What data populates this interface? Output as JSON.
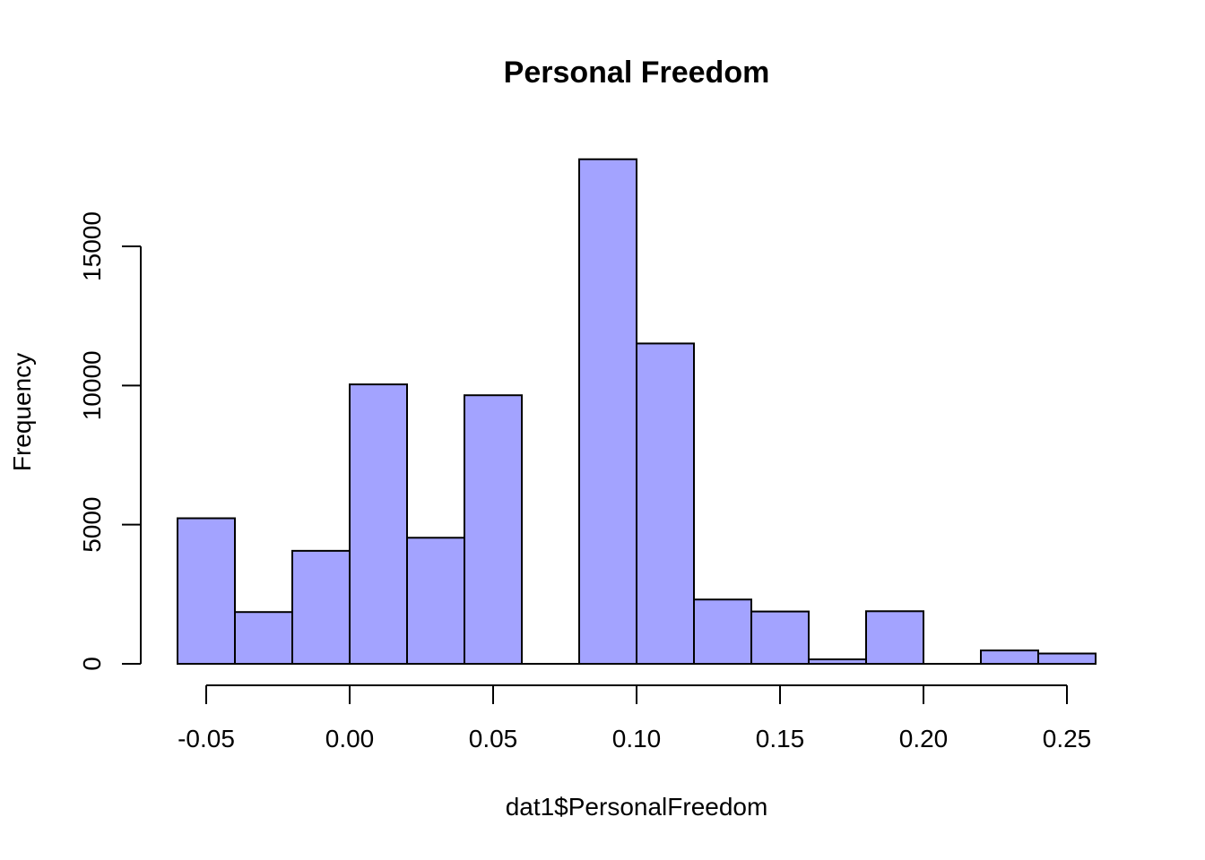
{
  "chart_data": {
    "type": "bar",
    "title": "Personal Freedom",
    "xlabel": "dat1$PersonalFreedom",
    "ylabel": "Frequency",
    "bar_color": "#a3a3ff",
    "bins": [
      {
        "x0": -0.06,
        "x1": -0.04,
        "count": 5230
      },
      {
        "x0": -0.04,
        "x1": -0.02,
        "count": 1860
      },
      {
        "x0": -0.02,
        "x1": 0.0,
        "count": 4060
      },
      {
        "x0": 0.0,
        "x1": 0.02,
        "count": 10040
      },
      {
        "x0": 0.02,
        "x1": 0.04,
        "count": 4530
      },
      {
        "x0": 0.04,
        "x1": 0.06,
        "count": 9650
      },
      {
        "x0": 0.06,
        "x1": 0.08,
        "count": 0
      },
      {
        "x0": 0.08,
        "x1": 0.1,
        "count": 18130
      },
      {
        "x0": 0.1,
        "x1": 0.12,
        "count": 11510
      },
      {
        "x0": 0.12,
        "x1": 0.14,
        "count": 2310
      },
      {
        "x0": 0.14,
        "x1": 0.16,
        "count": 1880
      },
      {
        "x0": 0.16,
        "x1": 0.18,
        "count": 160
      },
      {
        "x0": 0.18,
        "x1": 0.2,
        "count": 1890
      },
      {
        "x0": 0.2,
        "x1": 0.22,
        "count": 0
      },
      {
        "x0": 0.22,
        "x1": 0.24,
        "count": 480
      },
      {
        "x0": 0.24,
        "x1": 0.26,
        "count": 370
      }
    ],
    "xlim": [
      -0.06,
      0.26
    ],
    "ylim": [
      0,
      18130
    ],
    "x_ticks": [
      {
        "value": -0.05,
        "label": "-0.05"
      },
      {
        "value": 0.0,
        "label": "0.00"
      },
      {
        "value": 0.05,
        "label": "0.05"
      },
      {
        "value": 0.1,
        "label": "0.10"
      },
      {
        "value": 0.15,
        "label": "0.15"
      },
      {
        "value": 0.2,
        "label": "0.20"
      },
      {
        "value": 0.25,
        "label": "0.25"
      }
    ],
    "y_ticks": [
      {
        "value": 0,
        "label": "0"
      },
      {
        "value": 5000,
        "label": "5000"
      },
      {
        "value": 10000,
        "label": "10000"
      },
      {
        "value": 15000,
        "label": "15000"
      }
    ],
    "grid": false
  }
}
